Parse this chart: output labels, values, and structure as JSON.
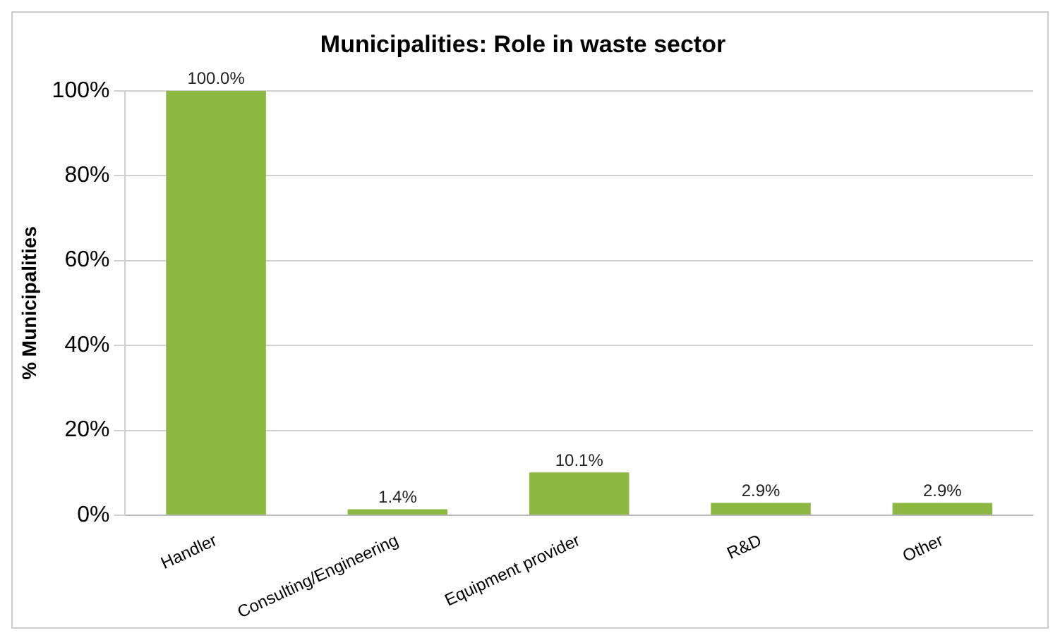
{
  "chart_data": {
    "type": "bar",
    "title": "Municipalities: Role in waste sector",
    "ylabel": "% Municipalities",
    "categories": [
      "Handler",
      "Consulting/Engineering",
      "Equipment provider",
      "R&D",
      "Other"
    ],
    "values": [
      100,
      1.4,
      10.1,
      2.9,
      2.9
    ],
    "value_labels": [
      "100.0%",
      "1.4%",
      "10.1%",
      "2.9%",
      "2.9%"
    ],
    "color": "#8db842",
    "ylim": [
      0,
      100
    ],
    "yticks": [
      {
        "value": 0,
        "label": "0%"
      },
      {
        "value": 20,
        "label": "20%"
      },
      {
        "value": 40,
        "label": "40%"
      },
      {
        "value": 60,
        "label": "60%"
      },
      {
        "value": 80,
        "label": "80%"
      },
      {
        "value": 100,
        "label": "100%"
      }
    ],
    "grid": "y",
    "legend": false
  }
}
